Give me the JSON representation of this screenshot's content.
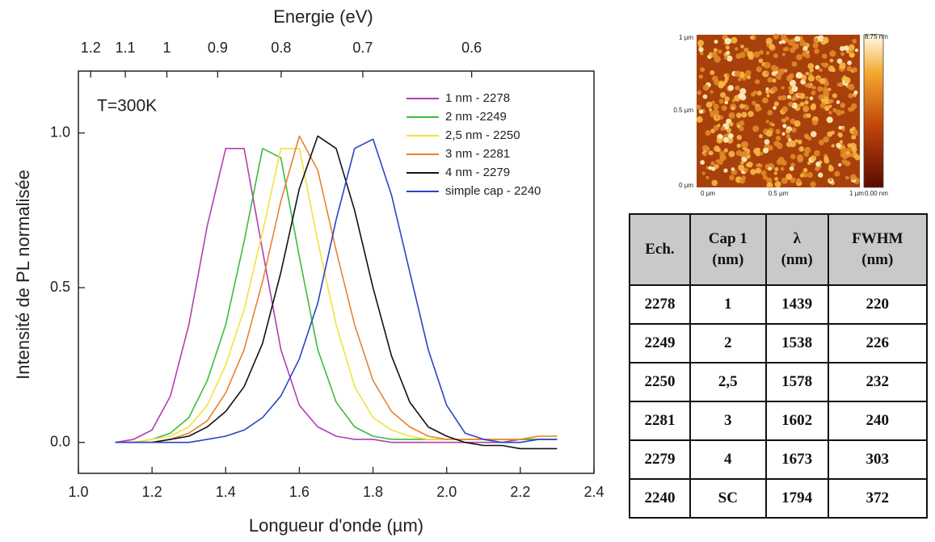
{
  "chart_data": {
    "type": "line",
    "top_axis_label": "Energie (eV)",
    "xlabel": "Longueur d'onde (µm)",
    "ylabel": "Intensité de PL normalisée",
    "annotation": "T=300K",
    "x": [
      1.1,
      1.15,
      1.2,
      1.25,
      1.3,
      1.35,
      1.4,
      1.45,
      1.5,
      1.55,
      1.6,
      1.65,
      1.7,
      1.75,
      1.8,
      1.85,
      1.9,
      1.95,
      2.0,
      2.05,
      2.1,
      2.15,
      2.2,
      2.25,
      2.3
    ],
    "series": [
      {
        "name": "1 nm - 2278",
        "color": "#b23fb0",
        "values": [
          0,
          0.01,
          0.04,
          0.15,
          0.38,
          0.7,
          0.95,
          0.95,
          0.62,
          0.3,
          0.12,
          0.05,
          0.02,
          0.01,
          0.01,
          0,
          0,
          0,
          0,
          0,
          0,
          0,
          0.01,
          0.01,
          0.01
        ]
      },
      {
        "name": "2 nm -2249",
        "color": "#3dbb3d",
        "values": [
          0,
          0,
          0.01,
          0.03,
          0.08,
          0.2,
          0.38,
          0.65,
          0.95,
          0.92,
          0.6,
          0.3,
          0.13,
          0.05,
          0.02,
          0.01,
          0.01,
          0.01,
          0.01,
          0.01,
          0.01,
          0.01,
          0.01,
          0.01,
          0.01
        ]
      },
      {
        "name": "2,5 nm - 2250",
        "color": "#f2e23c",
        "values": [
          0,
          0,
          0.01,
          0.02,
          0.05,
          0.12,
          0.25,
          0.43,
          0.68,
          0.95,
          0.95,
          0.65,
          0.38,
          0.18,
          0.08,
          0.04,
          0.02,
          0.01,
          0.01,
          0.01,
          0.01,
          0.01,
          0.01,
          0.02,
          0.02
        ]
      },
      {
        "name": "3 nm - 2281",
        "color": "#e8822e",
        "values": [
          0,
          0,
          0,
          0.01,
          0.03,
          0.07,
          0.16,
          0.3,
          0.52,
          0.78,
          0.99,
          0.88,
          0.62,
          0.38,
          0.2,
          0.1,
          0.05,
          0.02,
          0.01,
          0.01,
          0.01,
          0.01,
          0.01,
          0.02,
          0.02
        ]
      },
      {
        "name": "4 nm - 2279",
        "color": "#111111",
        "values": [
          0,
          0,
          0,
          0.01,
          0.02,
          0.05,
          0.1,
          0.18,
          0.32,
          0.55,
          0.82,
          0.99,
          0.95,
          0.75,
          0.5,
          0.28,
          0.13,
          0.05,
          0.02,
          0,
          -0.01,
          -0.01,
          -0.02,
          -0.02,
          -0.02
        ]
      },
      {
        "name": "simple cap - 2240",
        "color": "#2a44c4",
        "values": [
          0,
          0,
          0,
          0,
          0,
          0.01,
          0.02,
          0.04,
          0.08,
          0.15,
          0.27,
          0.45,
          0.72,
          0.95,
          0.98,
          0.8,
          0.55,
          0.3,
          0.12,
          0.03,
          0.01,
          0,
          0,
          0.01,
          0.01
        ]
      }
    ],
    "xlim": [
      1.0,
      2.4
    ],
    "xticks": [
      {
        "value": 1.0,
        "label": "1.0"
      },
      1.2,
      1.4,
      1.6,
      1.8,
      {
        "value": 2.0,
        "label": "2.0"
      },
      2.2,
      2.4
    ],
    "ylim": [
      -0.1,
      1.2
    ],
    "yticks": [
      {
        "value": 0,
        "label": "0.0"
      },
      0.5,
      {
        "value": 1,
        "label": "1.0"
      }
    ],
    "x2scale": "reciprocal",
    "x2lim": [
      1.24,
      0.517
    ],
    "x2ticks": [
      1.2,
      1.1,
      1,
      0.9,
      0.8,
      0.7,
      0.6
    ],
    "legend": "upper right",
    "grid": false
  },
  "afm_image": {
    "y_labels": [
      "1 µm",
      "0.5 µm",
      "0 µm"
    ],
    "x_labels": [
      "0 µm",
      "0.5 µm",
      "1 µm"
    ],
    "colorbar_labels": [
      "8.75 nm",
      "0.00 nm"
    ]
  },
  "table": {
    "header": [
      [
        "Ech."
      ],
      [
        "Cap 1",
        "(nm)"
      ],
      [
        "λ",
        "(nm)"
      ],
      [
        "FWHM",
        "(nm)"
      ]
    ],
    "rows": [
      [
        2278,
        1,
        1439,
        220
      ],
      [
        2249,
        2,
        1538,
        226
      ],
      [
        2250,
        "2,5",
        1578,
        232
      ],
      [
        2281,
        3,
        1602,
        240
      ],
      [
        2279,
        4,
        1673,
        303
      ],
      [
        2240,
        "SC",
        1794,
        372
      ]
    ]
  }
}
